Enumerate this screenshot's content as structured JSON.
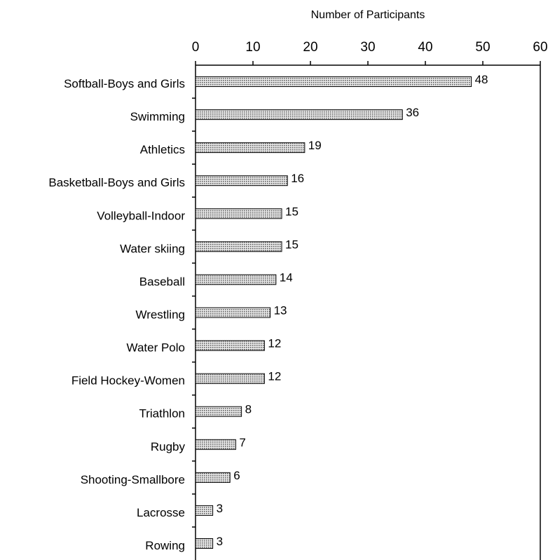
{
  "chart_data": {
    "type": "bar",
    "orientation": "horizontal",
    "x_label": "Number of Participants",
    "categories": [
      "Softball-Boys and Girls",
      "Swimming",
      "Athletics",
      "Basketball-Boys and Girls",
      "Volleyball-Indoor",
      "Water skiing",
      "Baseball",
      "Wrestling",
      "Water Polo",
      "Field Hockey-Women",
      "Triathlon",
      "Rugby",
      "Shooting-Smallbore",
      "Lacrosse",
      "Rowing"
    ],
    "values": [
      48,
      36,
      19,
      16,
      15,
      15,
      14,
      13,
      12,
      12,
      8,
      7,
      6,
      3,
      3
    ],
    "color": "#c8c8c8",
    "xlim": [
      0,
      60
    ],
    "xticks": [
      0,
      10,
      20,
      30,
      40,
      50,
      60
    ],
    "grid": false
  }
}
